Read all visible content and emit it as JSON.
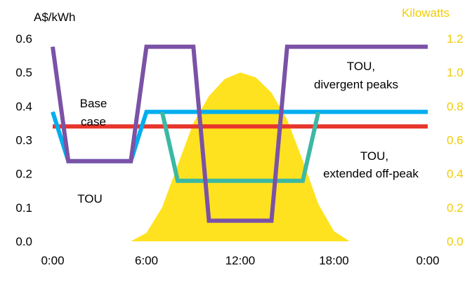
{
  "chart_data": {
    "type": "line",
    "y_left_label": "A$/kWh",
    "y_right_label": "Kilowatts",
    "x_ticks": [
      "0:00",
      "6:00",
      "12:00",
      "18:00",
      "0:00"
    ],
    "y_left_ticks": [
      "0.0",
      "0.1",
      "0.2",
      "0.3",
      "0.4",
      "0.5",
      "0.6"
    ],
    "y_right_ticks": [
      "0.0",
      "0.2",
      "0.4",
      "0.6",
      "0.8",
      "1.0",
      "1.2"
    ],
    "x_range_hours": [
      0,
      24
    ],
    "y_left_range": [
      0,
      0.6
    ],
    "y_right_range": [
      0,
      1.2
    ],
    "colors": {
      "solar": "#FFE21F",
      "base": "#E8352B",
      "tou": "#00AEEF",
      "divergent": "#7B52A6",
      "extended": "#3CB8A4",
      "right_axis": "#F2CC00",
      "text": "#000000"
    },
    "area_series": {
      "name": "",
      "axis": "right",
      "x": [
        0,
        5.0,
        6.0,
        7.0,
        8.0,
        9.0,
        10.0,
        11.0,
        12.0,
        13.0,
        14.0,
        15.0,
        16.0,
        17.0,
        18.0,
        19.0,
        24
      ],
      "values": [
        0,
        0,
        0.05,
        0.2,
        0.45,
        0.7,
        0.86,
        0.96,
        1.0,
        0.97,
        0.88,
        0.72,
        0.48,
        0.22,
        0.06,
        0,
        0
      ]
    },
    "series": [
      {
        "key": "base",
        "axis": "left",
        "x": [
          0,
          24
        ],
        "values": [
          0.34,
          0.34
        ]
      },
      {
        "key": "tou",
        "axis": "left",
        "x": [
          0,
          1.0,
          5.0,
          6.0,
          24
        ],
        "values": [
          0.383,
          0.237,
          0.237,
          0.383,
          0.383
        ]
      },
      {
        "key": "extended",
        "axis": "left",
        "x": [
          7.0,
          8.0,
          16.0,
          17.0
        ],
        "values": [
          0.383,
          0.179,
          0.179,
          0.383
        ]
      },
      {
        "key": "divergent",
        "axis": "left",
        "x": [
          0,
          1.0,
          5.0,
          6.0,
          9.0,
          10.0,
          14.0,
          15.0,
          24
        ],
        "values": [
          0.576,
          0.237,
          0.237,
          0.576,
          0.576,
          0.061,
          0.061,
          0.576,
          0.576
        ]
      }
    ],
    "annotations": {
      "base": [
        "Base",
        "case"
      ],
      "tou": [
        "TOU"
      ],
      "divergent": [
        "TOU,",
        "divergent peaks"
      ],
      "extended": [
        "TOU,",
        "extended off-peak"
      ]
    }
  }
}
